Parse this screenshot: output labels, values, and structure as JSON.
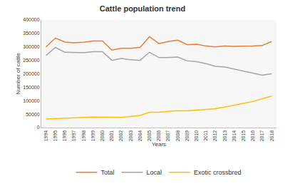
{
  "chart_data": {
    "type": "line",
    "title": "Cattle population trend",
    "x_label": "Years",
    "y_label": "Number of cattle",
    "categories": [
      "1994",
      "1995",
      "1996",
      "1997",
      "1998",
      "1999",
      "2000",
      "2001",
      "2002",
      "2003",
      "2004",
      "2005",
      "2006",
      "2007",
      "2008",
      "2009",
      "2010",
      "2011",
      "2012",
      "2013",
      "2014",
      "2015",
      "2016",
      "2017",
      "2018"
    ],
    "series": [
      {
        "name": "Total",
        "color": "#ed7d31",
        "values": [
          300000,
          333000,
          318000,
          315000,
          317000,
          322000,
          322000,
          288000,
          295000,
          295000,
          298000,
          338000,
          312000,
          320000,
          325000,
          308000,
          310000,
          303000,
          300000,
          303000,
          302000,
          302000,
          303000,
          305000,
          320000
        ]
      },
      {
        "name": "Local",
        "color": "#a5a5a5",
        "values": [
          268000,
          298000,
          280000,
          278000,
          278000,
          282000,
          282000,
          250000,
          257000,
          252000,
          250000,
          280000,
          260000,
          260000,
          262000,
          248000,
          245000,
          238000,
          228000,
          225000,
          218000,
          210000,
          203000,
          195000,
          200000
        ]
      },
      {
        "name": "Exotic crossbred",
        "color": "#ffc000",
        "values": [
          32000,
          34000,
          34000,
          37000,
          38000,
          39000,
          39000,
          38000,
          38000,
          41000,
          45000,
          57000,
          57000,
          60000,
          63000,
          62000,
          65000,
          67000,
          70000,
          76000,
          82000,
          90000,
          97000,
          107000,
          117000
        ]
      }
    ],
    "ylim": [
      0,
      400000
    ],
    "yticks": [
      0,
      50000,
      100000,
      150000,
      200000,
      250000,
      300000,
      350000,
      400000
    ],
    "grid": false,
    "legend": "bottom"
  }
}
